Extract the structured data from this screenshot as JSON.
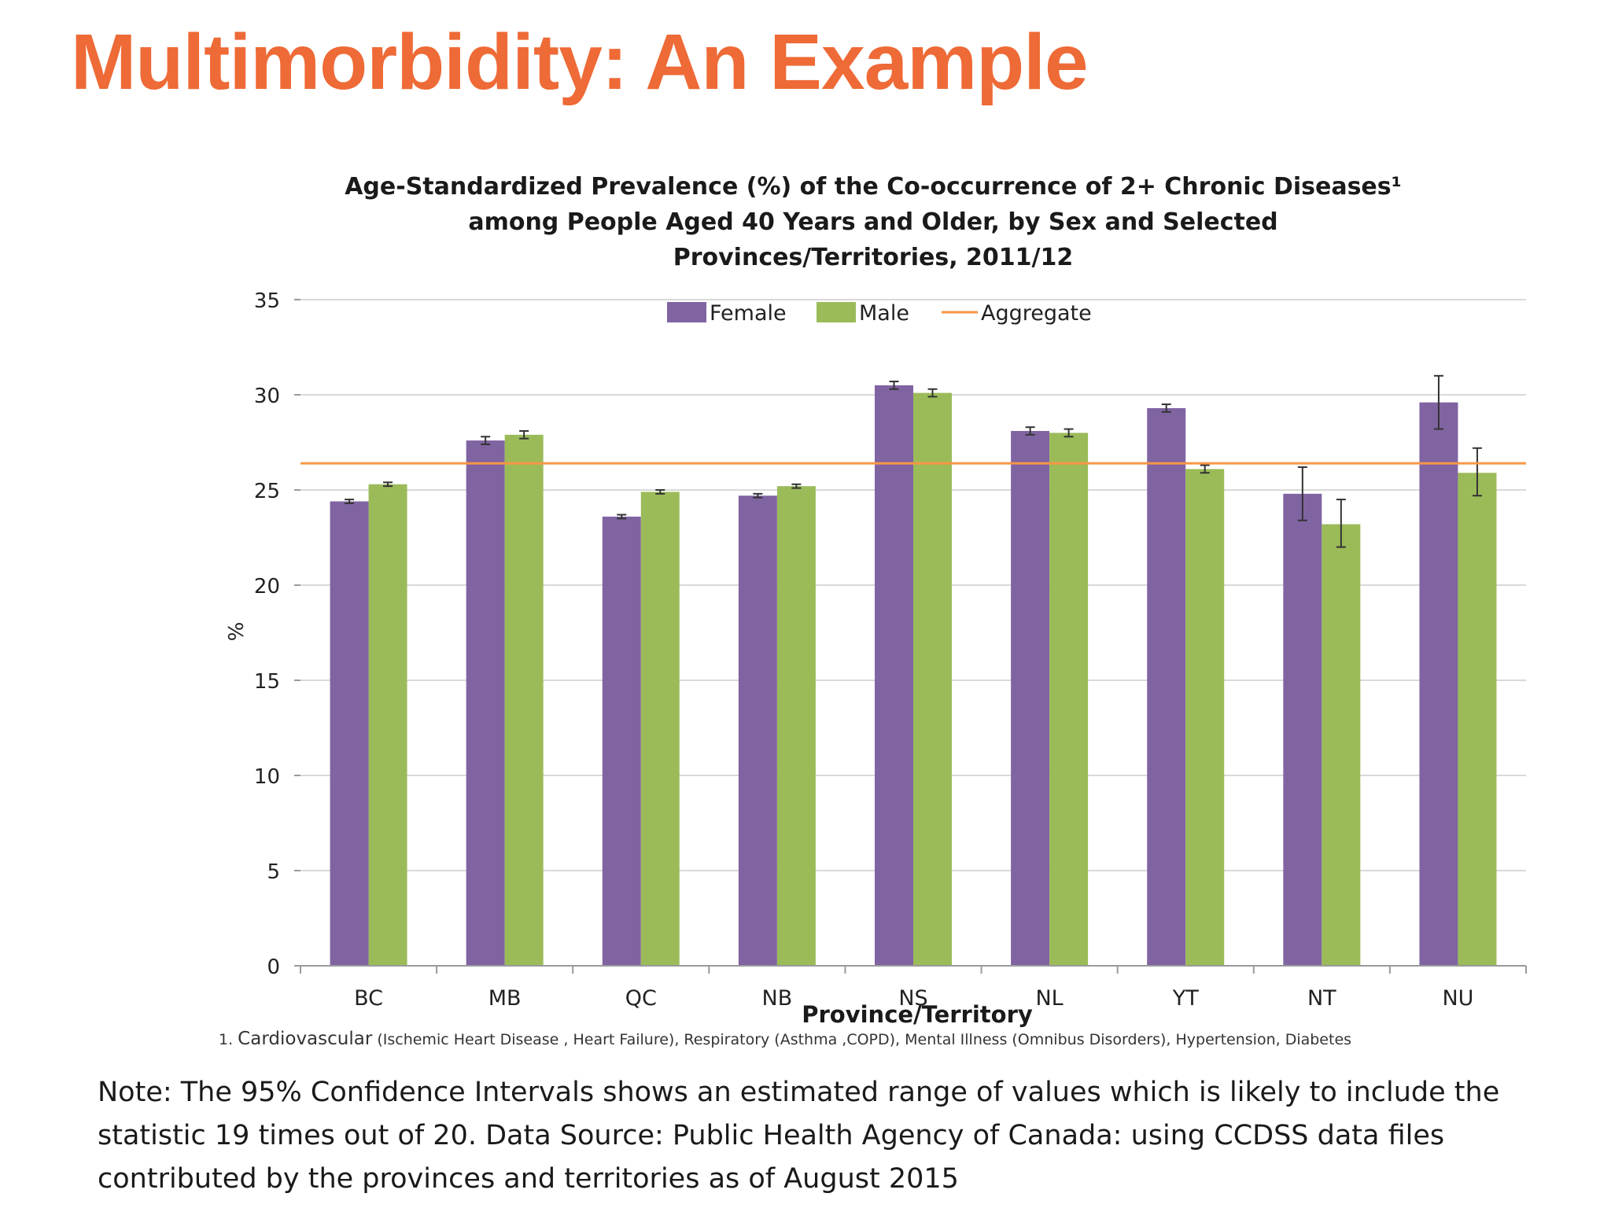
{
  "slide": {
    "title": "Multimorbidity: An Example",
    "footnote_prefix": "1. ",
    "footnote_lead": "Cardiovascular",
    "footnote_rest": " (Ischemic Heart Disease , Heart Failure), Respiratory (Asthma ,COPD), Mental Illness (Omnibus Disorders), Hypertension,  Diabetes",
    "note": "Note: The 95% Confidence Intervals shows an estimated range of values which is likely to include the statistic 19 times out of 20. Data Source: Public Health Agency of Canada: using CCDSS data files contributed by the provinces and territories as of August 2015"
  },
  "colors": {
    "title": "#EE6A36",
    "female": "#8064A2",
    "male": "#9BBB59",
    "aggregate": "#F79646",
    "grid": "#D9D9D9"
  },
  "chart_data": {
    "type": "bar",
    "title_lines": [
      "Age-Standardized Prevalence (%) of the Co-occurrence of 2+ Chronic Diseases¹",
      "among People Aged 40 Years and Older, by Sex and Selected",
      "Provinces/Territories, 2011/12"
    ],
    "xlabel": "Province/Territory",
    "ylabel": "%",
    "ylim": [
      0,
      35
    ],
    "yticks": [
      0,
      5,
      10,
      15,
      20,
      25,
      30,
      35
    ],
    "grid": true,
    "legend_position": "top-center",
    "categories": [
      "BC",
      "MB",
      "QC",
      "NB",
      "NS",
      "NL",
      "YT",
      "NT",
      "NU"
    ],
    "series": [
      {
        "name": "Female",
        "values": [
          24.4,
          27.6,
          23.6,
          24.7,
          30.5,
          28.1,
          29.3,
          24.8,
          29.6
        ],
        "ci_low": [
          24.3,
          27.4,
          23.5,
          24.6,
          30.3,
          27.9,
          29.1,
          23.4,
          28.2
        ],
        "ci_high": [
          24.5,
          27.8,
          23.7,
          24.8,
          30.7,
          28.3,
          29.5,
          26.2,
          31.0
        ]
      },
      {
        "name": "Male",
        "values": [
          25.3,
          27.9,
          24.9,
          25.2,
          30.1,
          28.0,
          26.1,
          23.2,
          25.9
        ],
        "ci_low": [
          25.2,
          27.7,
          24.8,
          25.1,
          29.9,
          27.8,
          25.9,
          22.0,
          24.7
        ],
        "ci_high": [
          25.4,
          28.1,
          25.0,
          25.3,
          30.3,
          28.2,
          26.3,
          24.5,
          27.2
        ]
      }
    ],
    "aggregate": {
      "name": "Aggregate",
      "value": 26.4
    }
  }
}
